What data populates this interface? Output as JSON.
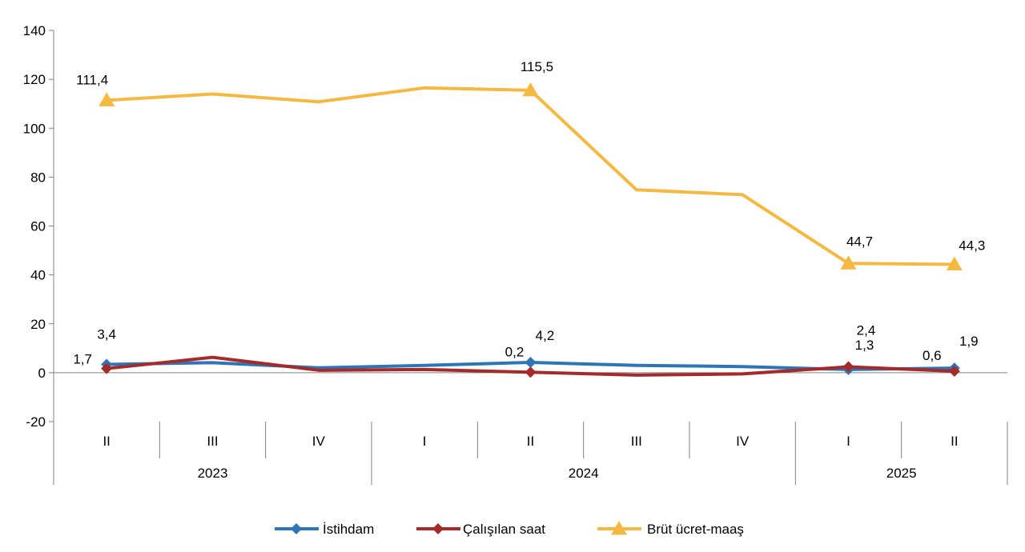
{
  "chart_data": {
    "type": "line",
    "title": "",
    "xlabel": "",
    "ylabel": "",
    "ylim": [
      -20,
      140
    ],
    "yticks": [
      140,
      120,
      100,
      80,
      60,
      40,
      20,
      0,
      -20
    ],
    "ytick_labels": [
      "140",
      "120",
      "100",
      "80",
      "60",
      "40",
      "20",
      "0",
      "-20"
    ],
    "categories": [
      "II",
      "III",
      "IV",
      "I",
      "II",
      "III",
      "IV",
      "I",
      "II"
    ],
    "year_groups": [
      {
        "label": "2023",
        "start": 0,
        "end": 2
      },
      {
        "label": "2024",
        "start": 3,
        "end": 6
      },
      {
        "label": "2025",
        "start": 7,
        "end": 8
      }
    ],
    "series": [
      {
        "name": "İstihdam",
        "color": "#2E75B6",
        "marker": "diamond",
        "values": [
          3.4,
          4.1,
          2.0,
          3.0,
          4.2,
          3.0,
          2.5,
          1.3,
          1.9
        ],
        "labels": {
          "0": "3,4",
          "4": "4,2",
          "7": "1,3",
          "8": "1,9"
        }
      },
      {
        "name": "Çalışılan saat",
        "color": "#A52A2A",
        "marker": "diamond",
        "values": [
          1.7,
          6.3,
          1.0,
          1.3,
          0.2,
          -1.0,
          -0.5,
          2.4,
          0.6
        ],
        "labels": {
          "0": "1,7",
          "4": "0,2",
          "7": "2,4",
          "8": "0,6"
        }
      },
      {
        "name": "Brüt ücret-maaş",
        "color": "#F4B942",
        "marker": "triangle",
        "values": [
          111.4,
          114.0,
          110.8,
          116.5,
          115.5,
          74.8,
          72.8,
          44.7,
          44.3
        ],
        "labels": {
          "0": "111,4",
          "4": "115,5",
          "7": "44,7",
          "8": "44,3"
        }
      }
    ],
    "legend_position": "bottom",
    "grid": false
  }
}
